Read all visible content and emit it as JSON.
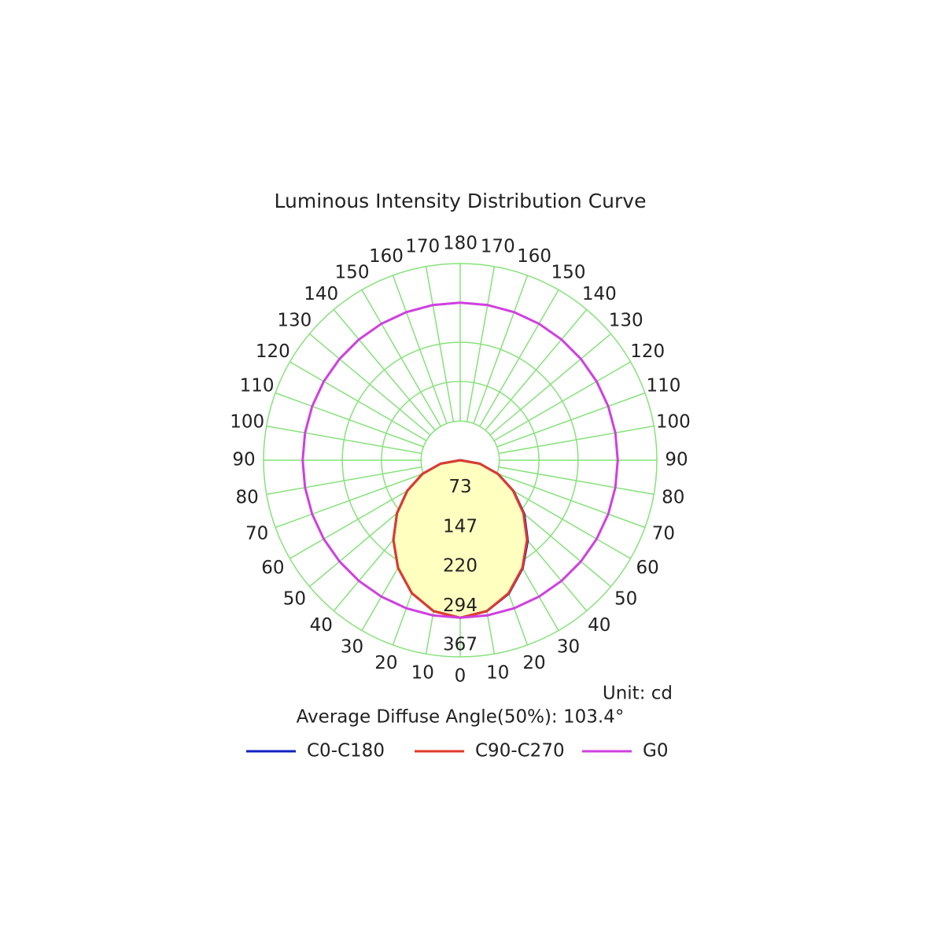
{
  "chart_data": {
    "type": "polar",
    "title": "Luminous Intensity Distribution Curve",
    "rlim": [
      0,
      367
    ],
    "rticks": [
      73,
      147,
      220,
      294,
      367
    ],
    "thetaticks": [
      0,
      10,
      20,
      30,
      40,
      50,
      60,
      70,
      80,
      90,
      100,
      110,
      120,
      130,
      140,
      150,
      160,
      170,
      180
    ],
    "grid": true,
    "unit_label": "Unit: cd",
    "annotation": "Average Diffuse Angle(50%): 103.4°",
    "series": [
      {
        "name": "C0-C180",
        "color": "#1020c0",
        "x": [
          -90,
          -80,
          -70,
          -60,
          -50,
          -40,
          -30,
          -20,
          -10,
          0,
          10,
          20,
          30,
          40,
          50,
          60,
          70,
          80,
          90
        ],
        "values": [
          0,
          37,
          75,
          114,
          154,
          194,
          232,
          264,
          286,
          294,
          286,
          265,
          233,
          196,
          156,
          115,
          75,
          37,
          0
        ]
      },
      {
        "name": "C90-C270",
        "color": "#e03a2a",
        "fill": "#ffffc0",
        "x": [
          -90,
          -80,
          -70,
          -60,
          -50,
          -40,
          -30,
          -20,
          -10,
          0,
          10,
          20,
          30,
          40,
          50,
          60,
          70,
          80,
          90
        ],
        "values": [
          0,
          37,
          75,
          114,
          154,
          194,
          232,
          264,
          286,
          294,
          286,
          264,
          232,
          194,
          154,
          114,
          75,
          37,
          0
        ]
      },
      {
        "name": "G0",
        "color": "#d040e0",
        "x": [
          -180,
          -170,
          -160,
          -150,
          -140,
          -130,
          -120,
          -110,
          -100,
          -90,
          -80,
          -70,
          -60,
          -50,
          -40,
          -30,
          -20,
          -10,
          0,
          10,
          20,
          30,
          40,
          50,
          60,
          70,
          80,
          90,
          100,
          110,
          120,
          130,
          140,
          150,
          160,
          170,
          180
        ],
        "values": [
          294,
          294,
          294,
          294,
          294,
          294,
          294,
          294,
          294,
          294,
          294,
          294,
          294,
          294,
          294,
          294,
          294,
          294,
          294,
          294,
          294,
          294,
          294,
          294,
          294,
          294,
          294,
          294,
          294,
          294,
          294,
          294,
          294,
          294,
          294,
          294,
          294
        ]
      }
    ]
  }
}
